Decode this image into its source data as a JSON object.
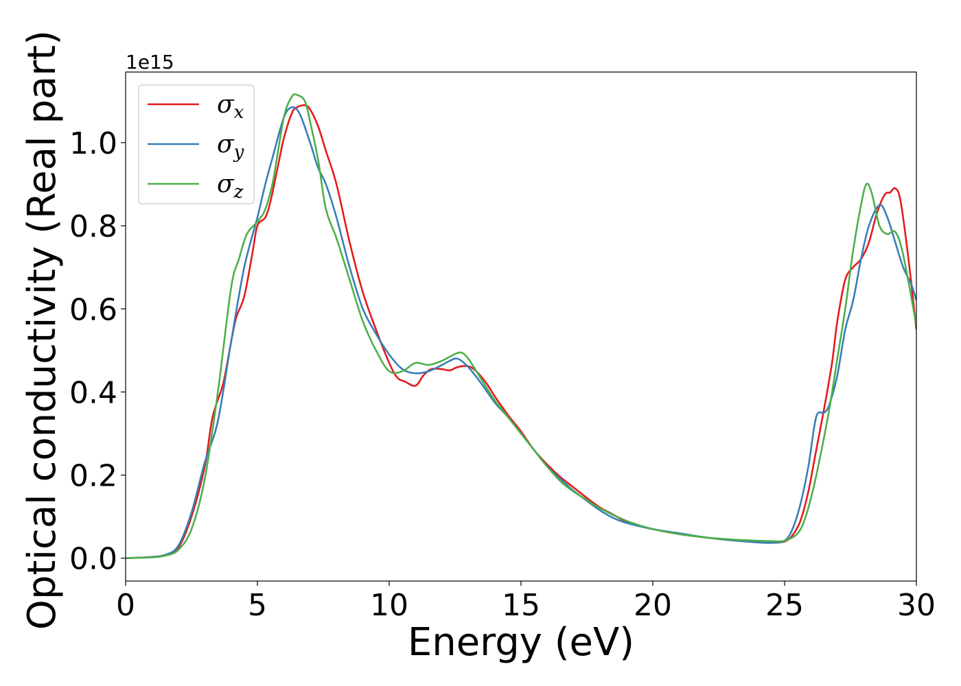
{
  "chart_data": {
    "type": "line",
    "xlabel": "Energy (eV)",
    "ylabel": "Optical conductivity (Real part)",
    "y_offset_label": "1e15",
    "xlim": [
      0,
      30
    ],
    "ylim": [
      -0.055,
      1.17
    ],
    "x_ticks": [
      0,
      5,
      10,
      15,
      20,
      25,
      30
    ],
    "x_tick_labels": [
      "0",
      "5",
      "10",
      "15",
      "20",
      "25",
      "30"
    ],
    "y_ticks": [
      0.0,
      0.2,
      0.4,
      0.6,
      0.8,
      1.0
    ],
    "y_tick_labels": [
      "0.0",
      "0.2",
      "0.4",
      "0.6",
      "0.8",
      "1.0"
    ],
    "grid": false,
    "legend_position": "top-left",
    "series": [
      {
        "name": "σx",
        "symbol": "σ",
        "subscript": "x",
        "color": "#e41a1c",
        "x": [
          0,
          1,
          1.5,
          2,
          2.5,
          3,
          3.3,
          3.7,
          4,
          4.2,
          4.5,
          4.8,
          5,
          5.3,
          5.5,
          5.8,
          6,
          6.3,
          6.5,
          6.8,
          7,
          7.3,
          7.6,
          8,
          8.5,
          9,
          9.5,
          10,
          10.3,
          10.6,
          11,
          11.3,
          11.6,
          12,
          12.3,
          12.6,
          13,
          13.3,
          13.7,
          14,
          14.5,
          15,
          15.5,
          16,
          16.5,
          17,
          17.5,
          18,
          18.5,
          19,
          20,
          21,
          22,
          23,
          24,
          24.5,
          25,
          25.3,
          25.6,
          25.9,
          26.2,
          26.5,
          26.8,
          27,
          27.3,
          27.6,
          27.9,
          28.2,
          28.5,
          28.8,
          29,
          29.2,
          29.4,
          29.7,
          30
        ],
        "y": [
          0,
          0.003,
          0.008,
          0.025,
          0.1,
          0.22,
          0.34,
          0.42,
          0.52,
          0.58,
          0.63,
          0.73,
          0.8,
          0.82,
          0.86,
          0.95,
          1.01,
          1.07,
          1.085,
          1.09,
          1.08,
          1.04,
          0.98,
          0.9,
          0.76,
          0.64,
          0.55,
          0.47,
          0.435,
          0.425,
          0.415,
          0.44,
          0.455,
          0.455,
          0.452,
          0.46,
          0.462,
          0.45,
          0.42,
          0.39,
          0.345,
          0.305,
          0.26,
          0.225,
          0.195,
          0.17,
          0.145,
          0.122,
          0.105,
          0.088,
          0.07,
          0.058,
          0.05,
          0.043,
          0.038,
          0.037,
          0.04,
          0.055,
          0.09,
          0.16,
          0.26,
          0.36,
          0.47,
          0.57,
          0.67,
          0.7,
          0.72,
          0.76,
          0.83,
          0.875,
          0.88,
          0.89,
          0.86,
          0.72,
          0.55
        ]
      },
      {
        "name": "σy",
        "symbol": "σ",
        "subscript": "y",
        "color": "#377eb8",
        "x": [
          0,
          1,
          1.5,
          2,
          2.5,
          3,
          3.5,
          4,
          4.5,
          5,
          5.3,
          5.6,
          6,
          6.3,
          6.6,
          7,
          7.3,
          7.6,
          8,
          8.5,
          9,
          9.5,
          10,
          10.5,
          11,
          11.5,
          12,
          12.3,
          12.6,
          13,
          13.5,
          14,
          14.5,
          15,
          15.5,
          16,
          16.5,
          17,
          17.5,
          18,
          18.5,
          19,
          20,
          21,
          22,
          23,
          24,
          24.5,
          25,
          25.3,
          25.6,
          25.9,
          26.2,
          26.5,
          26.7,
          27,
          27.3,
          27.6,
          27.9,
          28.2,
          28.6,
          28.9,
          29.2,
          29.5,
          29.8,
          30
        ],
        "y": [
          0,
          0.003,
          0.008,
          0.03,
          0.11,
          0.23,
          0.33,
          0.52,
          0.7,
          0.82,
          0.9,
          0.97,
          1.06,
          1.085,
          1.07,
          1.0,
          0.94,
          0.9,
          0.82,
          0.7,
          0.6,
          0.54,
          0.49,
          0.455,
          0.445,
          0.45,
          0.465,
          0.475,
          0.48,
          0.46,
          0.42,
          0.375,
          0.34,
          0.3,
          0.26,
          0.22,
          0.19,
          0.162,
          0.138,
          0.115,
          0.097,
          0.085,
          0.07,
          0.06,
          0.05,
          0.043,
          0.038,
          0.037,
          0.042,
          0.07,
          0.13,
          0.22,
          0.34,
          0.35,
          0.37,
          0.44,
          0.55,
          0.62,
          0.72,
          0.8,
          0.85,
          0.82,
          0.76,
          0.7,
          0.66,
          0.62
        ]
      },
      {
        "name": "σz",
        "symbol": "σ",
        "subscript": "z",
        "color": "#4daf4a",
        "x": [
          0,
          1,
          1.5,
          2,
          2.5,
          3,
          3.5,
          4,
          4.3,
          4.6,
          5,
          5.3,
          5.6,
          6,
          6.3,
          6.5,
          6.8,
          7,
          7.3,
          7.6,
          8,
          8.5,
          9,
          9.5,
          10,
          10.5,
          11,
          11.5,
          12,
          12.3,
          12.7,
          13,
          13.5,
          14,
          14.5,
          15,
          15.5,
          16,
          16.5,
          17,
          17.5,
          18,
          19,
          20,
          21,
          22,
          23,
          24,
          24.5,
          25,
          25.5,
          25.8,
          26.1,
          26.4,
          26.7,
          27,
          27.3,
          27.6,
          27.9,
          28.1,
          28.3,
          28.6,
          28.9,
          29.2,
          29.5,
          30
        ],
        "y": [
          0,
          0.002,
          0.006,
          0.02,
          0.07,
          0.19,
          0.4,
          0.65,
          0.72,
          0.78,
          0.81,
          0.84,
          0.91,
          1.06,
          1.11,
          1.115,
          1.1,
          1.05,
          0.96,
          0.84,
          0.77,
          0.67,
          0.57,
          0.5,
          0.45,
          0.45,
          0.47,
          0.465,
          0.475,
          0.485,
          0.495,
          0.48,
          0.43,
          0.38,
          0.34,
          0.3,
          0.26,
          0.22,
          0.185,
          0.16,
          0.14,
          0.12,
          0.09,
          0.07,
          0.058,
          0.05,
          0.045,
          0.042,
          0.041,
          0.042,
          0.06,
          0.1,
          0.17,
          0.26,
          0.36,
          0.48,
          0.6,
          0.74,
          0.85,
          0.9,
          0.88,
          0.8,
          0.78,
          0.785,
          0.73,
          0.56
        ]
      }
    ]
  }
}
